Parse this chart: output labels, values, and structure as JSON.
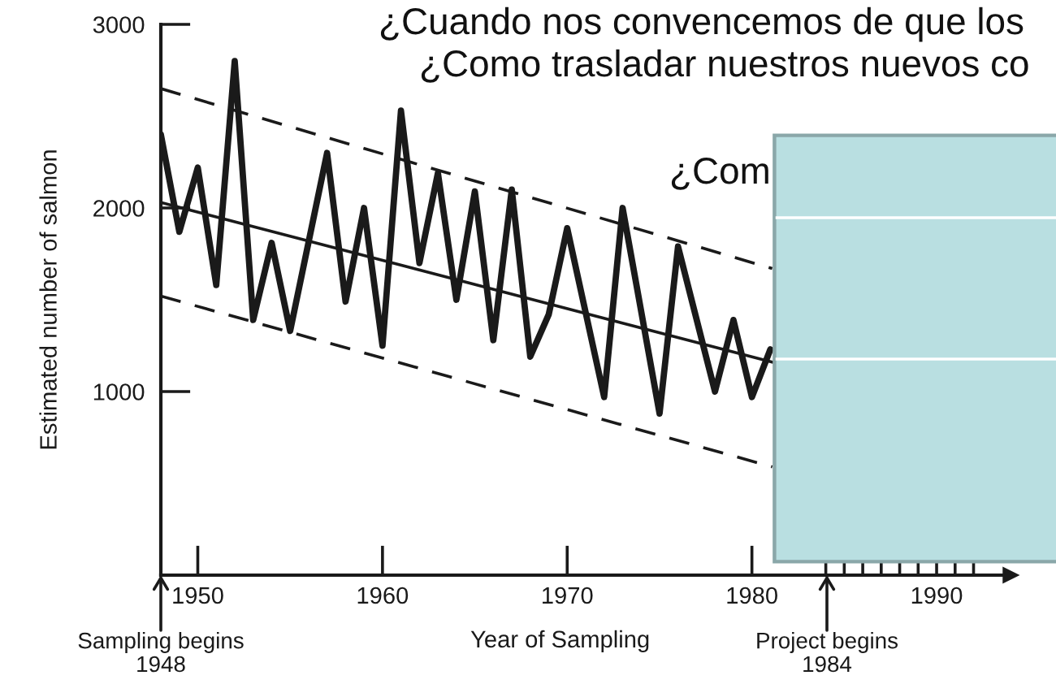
{
  "chart_data": {
    "type": "line",
    "xlabel": "Year of Sampling",
    "ylabel": "Estimated number of salmon",
    "xlim": [
      1948,
      1994
    ],
    "ylim": [
      0,
      3000
    ],
    "xticks": [
      1950,
      1960,
      1970,
      1980,
      {
        "value": 1984,
        "label": null
      },
      {
        "value": 1985,
        "label": null
      },
      {
        "value": 1986,
        "label": null
      },
      {
        "value": 1987,
        "label": null
      },
      {
        "value": 1988,
        "label": null
      },
      {
        "value": 1989,
        "label": null
      },
      1990,
      {
        "value": 1991,
        "label": null
      },
      {
        "value": 1992,
        "label": null
      }
    ],
    "yticks": [
      1000,
      2000,
      3000
    ],
    "series": [
      {
        "color": "#1a1a1a",
        "x": [
          1948,
          1949,
          1950,
          1951,
          1952,
          1953,
          1954,
          1955,
          1957,
          1958,
          1959,
          1960,
          1961,
          1962,
          1963,
          1964,
          1965,
          1966,
          1967,
          1968,
          1969,
          1970,
          1972,
          1973,
          1975,
          1976,
          1978,
          1979,
          1980,
          1981
        ],
        "values": [
          2400,
          1870,
          2220,
          1580,
          2800,
          1390,
          1810,
          1330,
          2300,
          1490,
          2000,
          1250,
          2530,
          1700,
          2190,
          1500,
          2090,
          1280,
          2100,
          1190,
          1420,
          1890,
          970,
          2000,
          880,
          1790,
          1000,
          1390,
          970,
          1230
        ]
      },
      {
        "color": "#1a1a1a",
        "line_style": "solid",
        "x": [
          1948,
          1981.1
        ],
        "values": [
          2030,
          1160
        ]
      },
      {
        "color": "#1a1a1a",
        "line_style": "dashed",
        "x": [
          1948,
          1981.1
        ],
        "values": [
          2650,
          1670
        ]
      },
      {
        "color": "#1a1a1a",
        "line_style": "dashed",
        "x": [
          1948,
          1981.1
        ],
        "values": [
          1520,
          590
        ]
      }
    ],
    "annotations": [
      "¿Cuando nos convencemos de que los",
      "¿Como trasladar nuestros nuevos co",
      "¿Com",
      "Sampling begins\n1948",
      "Project begins\n1984"
    ]
  }
}
